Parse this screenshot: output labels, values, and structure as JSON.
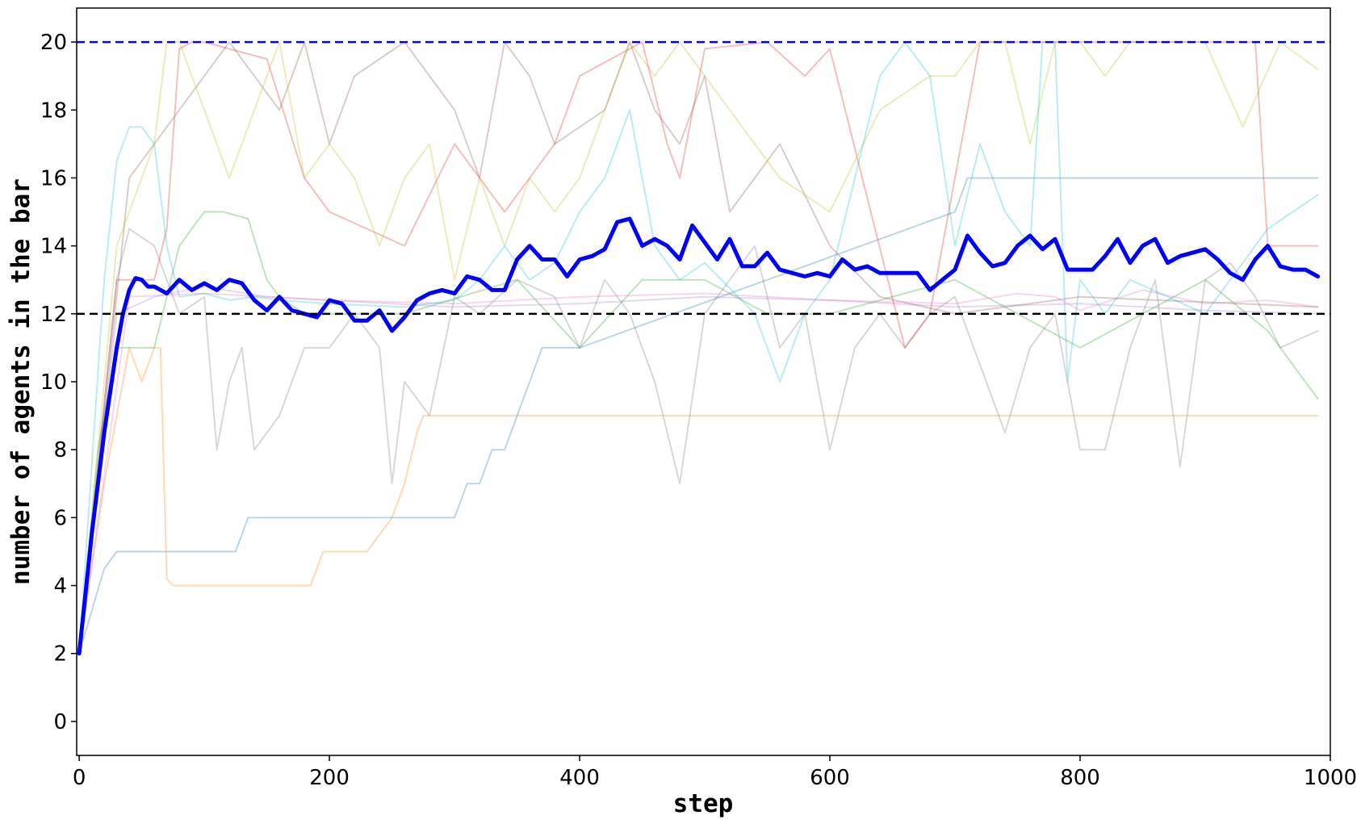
{
  "chart_data": {
    "type": "line",
    "title": "",
    "xlabel": "step",
    "ylabel": "number of agents in the bar",
    "xlim": [
      -2,
      1000
    ],
    "ylim": [
      -1,
      21
    ],
    "xticks": [
      0,
      200,
      400,
      600,
      800,
      1000
    ],
    "yticks": [
      0,
      2,
      4,
      6,
      8,
      10,
      12,
      14,
      16,
      18,
      20
    ],
    "grid": false,
    "legend": "none",
    "reference_lines": [
      {
        "y": 20,
        "color": "#0000ff",
        "style": "dashed"
      },
      {
        "y": 12,
        "color": "#000000",
        "style": "dashed"
      }
    ],
    "series": [
      {
        "color": "#1f77b4",
        "opacity": 0.3,
        "width": 2,
        "x": [
          0,
          20,
          30,
          125,
          135,
          300,
          310,
          320,
          330,
          340,
          350,
          360,
          370,
          380,
          400,
          700,
          710,
          720,
          740,
          810,
          880,
          890,
          990
        ],
        "y": [
          2,
          4.5,
          5,
          5,
          6,
          6,
          7,
          7,
          8,
          8,
          9,
          10,
          11,
          11,
          11,
          15,
          16,
          16,
          16,
          16,
          16,
          16,
          16
        ]
      },
      {
        "color": "#ff7f0e",
        "opacity": 0.3,
        "width": 2,
        "x": [
          0,
          20,
          40,
          50,
          60,
          65,
          70,
          75,
          120,
          185,
          195,
          230,
          240,
          250,
          260,
          270,
          275,
          990
        ],
        "y": [
          2,
          7,
          11,
          10,
          11,
          11,
          4.2,
          4,
          4,
          4,
          5,
          5,
          5.5,
          6,
          7,
          8.5,
          9,
          9
        ]
      },
      {
        "color": "#2ca02c",
        "opacity": 0.3,
        "width": 2,
        "x": [
          0,
          15,
          30,
          60,
          80,
          100,
          115,
          135,
          150,
          160,
          180,
          200,
          260,
          350,
          400,
          450,
          500,
          550,
          600,
          700,
          800,
          900,
          950,
          990
        ],
        "y": [
          2,
          8,
          11,
          11,
          14,
          15,
          15,
          14.8,
          13,
          12.5,
          12,
          12,
          12,
          13,
          11,
          13,
          13,
          12,
          12,
          13,
          11,
          13,
          11.5,
          9.5
        ]
      },
      {
        "color": "#d62728",
        "opacity": 0.3,
        "width": 2,
        "x": [
          0,
          30,
          60,
          70,
          80,
          90,
          100,
          150,
          180,
          200,
          260,
          300,
          340,
          360,
          380,
          400,
          450,
          470,
          480,
          500,
          550,
          580,
          600,
          660,
          680,
          700,
          720,
          800,
          870,
          940,
          950,
          990
        ],
        "y": [
          2,
          13,
          13,
          14.5,
          19.8,
          20,
          20,
          19.5,
          16,
          15,
          14,
          17,
          15,
          16,
          17,
          19,
          20,
          17,
          16,
          19.8,
          20,
          19,
          19.8,
          11,
          12,
          16,
          20,
          20,
          20,
          20,
          14,
          14
        ]
      },
      {
        "color": "#9467bd",
        "opacity": 0.25,
        "width": 2,
        "x": [
          0,
          30,
          60,
          100,
          150,
          200,
          300,
          400,
          500,
          600,
          700,
          800,
          900,
          990
        ],
        "y": [
          2,
          12,
          12.5,
          12.8,
          12.5,
          12.4,
          12.2,
          12.3,
          12.5,
          12.4,
          12.2,
          12.3,
          12.1,
          12.0
        ]
      },
      {
        "color": "#8c564b",
        "opacity": 0.3,
        "width": 2,
        "x": [
          0,
          40,
          80,
          120,
          140,
          160,
          180,
          200,
          220,
          260,
          300,
          320,
          340,
          360,
          380,
          420,
          440,
          460,
          480,
          500,
          520,
          540,
          560,
          600,
          640,
          700,
          800,
          990
        ],
        "y": [
          2,
          16,
          18,
          20,
          19,
          18,
          20,
          17,
          19,
          20,
          18,
          16,
          20,
          19,
          17,
          18,
          20,
          18,
          17,
          19,
          15,
          16,
          17,
          14,
          12.5,
          12,
          12.5,
          12.2
        ]
      },
      {
        "color": "#e377c2",
        "opacity": 0.3,
        "width": 2,
        "x": [
          0,
          40,
          100,
          200,
          300,
          400,
          500,
          600,
          700,
          750,
          780,
          800,
          850,
          900,
          950,
          990
        ],
        "y": [
          2,
          12.5,
          12.6,
          12.4,
          12.3,
          12.5,
          12.6,
          12.4,
          12.3,
          12.6,
          12.5,
          12.1,
          12.7,
          12.3,
          12.4,
          12.2
        ]
      },
      {
        "color": "#7f7f7f",
        "opacity": 0.3,
        "width": 2,
        "x": [
          0,
          30,
          40,
          60,
          80,
          100,
          110,
          120,
          130,
          140,
          160,
          180,
          200,
          220,
          240,
          250,
          260,
          280,
          300,
          320,
          350,
          380,
          400,
          420,
          440,
          460,
          480,
          500,
          520,
          540,
          560,
          580,
          600,
          620,
          640,
          660,
          680,
          700,
          720,
          740,
          760,
          780,
          800,
          820,
          840,
          860,
          880,
          900,
          920,
          940,
          960,
          990
        ],
        "y": [
          2,
          13,
          14.5,
          14,
          12,
          12.5,
          8,
          10,
          11,
          8,
          9,
          11,
          11,
          12,
          11,
          7,
          10,
          9,
          12.5,
          12,
          13,
          12.5,
          11,
          13,
          12,
          10,
          7,
          12,
          13,
          14,
          11,
          12,
          8,
          11,
          12,
          11,
          12,
          12.5,
          10.5,
          8.5,
          11,
          12,
          8,
          8,
          11,
          13,
          7.5,
          13,
          13.5,
          12.5,
          11,
          11.5
        ]
      },
      {
        "color": "#bcbd22",
        "opacity": 0.3,
        "width": 2,
        "x": [
          0,
          30,
          60,
          70,
          80,
          120,
          140,
          160,
          180,
          200,
          220,
          240,
          260,
          280,
          300,
          320,
          340,
          360,
          380,
          400,
          420,
          440,
          460,
          480,
          500,
          520,
          560,
          600,
          640,
          680,
          700,
          720,
          740,
          760,
          780,
          800,
          820,
          840,
          860,
          880,
          900,
          930,
          960,
          990
        ],
        "y": [
          2,
          14,
          17,
          20,
          20,
          16,
          18,
          20,
          16,
          17,
          16,
          14,
          16,
          17,
          13,
          16,
          14,
          16,
          15,
          16,
          18,
          20,
          19,
          20,
          19,
          18,
          16,
          15,
          18,
          19,
          19,
          20,
          20,
          17,
          20,
          20,
          19,
          20,
          20,
          20,
          20,
          17.5,
          20,
          19.2
        ]
      },
      {
        "color": "#17becf",
        "opacity": 0.3,
        "width": 2,
        "x": [
          0,
          20,
          30,
          40,
          50,
          60,
          70,
          80,
          100,
          120,
          140,
          160,
          200,
          260,
          300,
          320,
          340,
          360,
          380,
          400,
          420,
          440,
          460,
          480,
          500,
          540,
          560,
          580,
          600,
          640,
          660,
          680,
          700,
          720,
          740,
          760,
          770,
          780,
          790,
          800,
          820,
          840,
          900,
          950,
          990
        ],
        "y": [
          2,
          13,
          16.5,
          17.5,
          17.5,
          17,
          14,
          12.5,
          12.6,
          12.4,
          12.5,
          12.4,
          12.3,
          12.2,
          12.4,
          13,
          14,
          13,
          13.5,
          15,
          16,
          18,
          14,
          13,
          13.5,
          12,
          10,
          12,
          13,
          19,
          20,
          19,
          14,
          17,
          15,
          14,
          20,
          20,
          10,
          13,
          12,
          13,
          12,
          14.5,
          15.5
        ]
      },
      {
        "color": "#0000ff",
        "opacity": 1,
        "width": 5,
        "x": [
          0,
          10,
          20,
          30,
          35,
          40,
          45,
          50,
          55,
          60,
          70,
          80,
          90,
          100,
          110,
          120,
          130,
          140,
          150,
          160,
          170,
          180,
          190,
          200,
          210,
          220,
          230,
          240,
          250,
          260,
          270,
          280,
          290,
          300,
          310,
          320,
          330,
          340,
          350,
          360,
          370,
          380,
          390,
          400,
          410,
          420,
          430,
          440,
          450,
          460,
          470,
          480,
          490,
          500,
          510,
          520,
          530,
          540,
          550,
          560,
          570,
          580,
          590,
          600,
          610,
          620,
          630,
          640,
          650,
          660,
          670,
          680,
          690,
          700,
          710,
          720,
          730,
          740,
          750,
          760,
          770,
          780,
          790,
          800,
          810,
          820,
          830,
          840,
          850,
          860,
          870,
          880,
          890,
          900,
          910,
          920,
          930,
          940,
          950,
          960,
          970,
          980,
          990
        ],
        "y": [
          2,
          5.5,
          8.5,
          11,
          12,
          12.7,
          13.05,
          13.0,
          12.8,
          12.8,
          12.6,
          13.0,
          12.7,
          12.9,
          12.7,
          13.0,
          12.9,
          12.4,
          12.1,
          12.5,
          12.1,
          12.0,
          11.9,
          12.4,
          12.3,
          11.8,
          11.8,
          12.1,
          11.5,
          11.9,
          12.4,
          12.6,
          12.7,
          12.6,
          13.1,
          13.0,
          12.7,
          12.7,
          13.6,
          14.0,
          13.6,
          13.6,
          13.1,
          13.6,
          13.7,
          13.9,
          14.7,
          14.8,
          14.0,
          14.2,
          14.0,
          13.6,
          14.6,
          14.1,
          13.6,
          14.2,
          13.4,
          13.4,
          13.8,
          13.3,
          13.2,
          13.1,
          13.2,
          13.1,
          13.6,
          13.3,
          13.4,
          13.2,
          13.2,
          13.2,
          13.2,
          12.7,
          13.0,
          13.3,
          14.3,
          13.8,
          13.4,
          13.5,
          14.0,
          14.3,
          13.9,
          14.2,
          13.3,
          13.3,
          13.3,
          13.7,
          14.2,
          13.5,
          14.0,
          14.2,
          13.5,
          13.7,
          13.8,
          13.9,
          13.6,
          13.2,
          13.0,
          13.6,
          14.0,
          13.4,
          13.3,
          13.3,
          13.1
        ]
      }
    ]
  }
}
